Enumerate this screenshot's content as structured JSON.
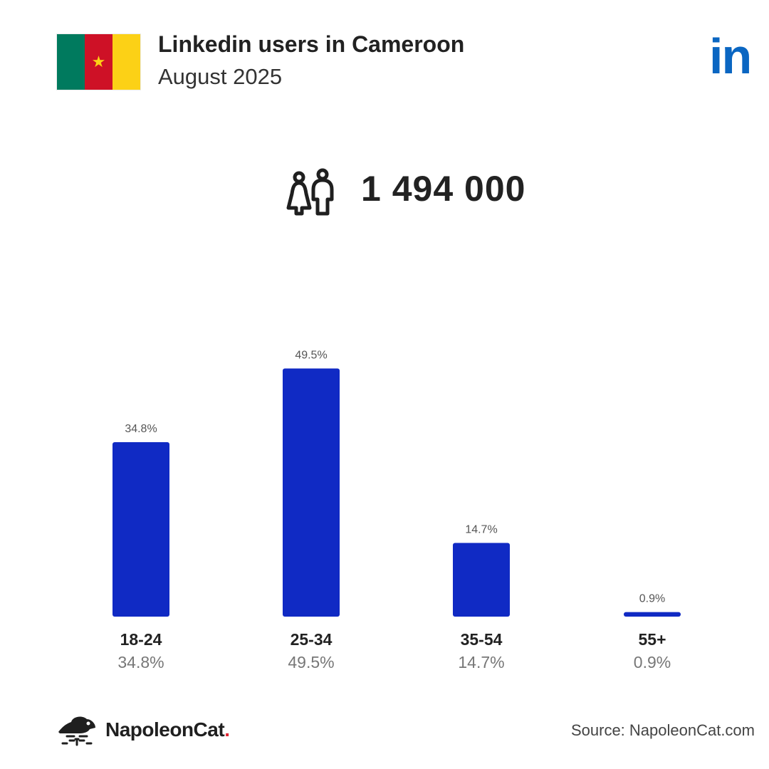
{
  "header": {
    "title": "Linkedin users in Cameroon",
    "subtitle": "August 2025",
    "linkedin_logo_text": "in",
    "flag_icon": "cameroon-flag",
    "flag_colors": [
      "#007a5e",
      "#ce1126",
      "#fcd116"
    ],
    "star_color": "#fcd116"
  },
  "summary": {
    "icon": "users-icon",
    "total_users": "1 494 000"
  },
  "chart_data": {
    "type": "bar",
    "title": "",
    "xlabel": "",
    "ylabel": "",
    "categories": [
      "18-24",
      "25-34",
      "35-54",
      "55+"
    ],
    "values": [
      34.8,
      49.5,
      14.7,
      0.9
    ],
    "value_labels": [
      "34.8%",
      "49.5%",
      "14.7%",
      "0.9%"
    ],
    "ylim": [
      0,
      50
    ],
    "grid": false,
    "bar_color": "#102ac4"
  },
  "footer": {
    "brand_name": "NapoleonCat",
    "brand_dot": ".",
    "brand_icon": "napoleoncat-logo",
    "source": "Source: NapoleonCat.com"
  },
  "colors": {
    "accent": "#102ac4",
    "linkedin": "#0a66c2",
    "brand_dot": "#e0232f"
  }
}
